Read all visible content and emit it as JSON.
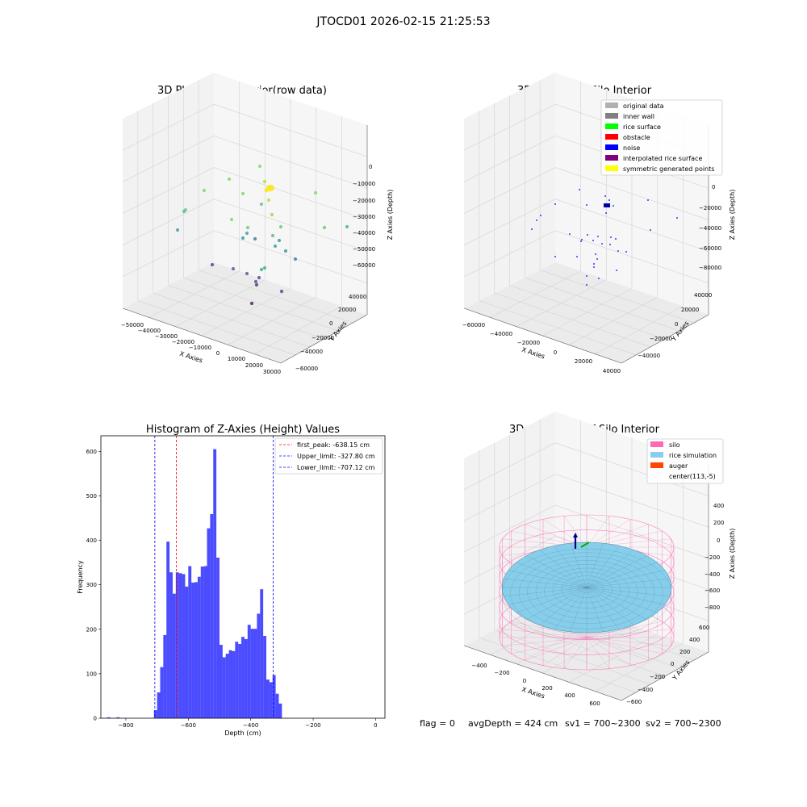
{
  "figure": {
    "suptitle": "JTOCD01 2026-02-15 21:25:53",
    "footer": {
      "flag": "flag = 0",
      "avg_depth": "avgDepth = 424 cm",
      "sv1": "sv1 = 700~2300",
      "sv2": "sv2 = 700~2300"
    }
  },
  "chart_data": [
    {
      "type": "scatter",
      "projection": "3d",
      "title": "3D Plot of Silo Interior(row data)",
      "xlabel": "X Axies",
      "ylabel": "Y Axies",
      "zlabel": "Z Axies (Depth)",
      "x_ticks": [
        "−50000",
        "−40000",
        "−30000",
        "−20000",
        "−10000",
        "0",
        "10000",
        "20000",
        "30000"
      ],
      "y_ticks": [
        "−60000",
        "−40000",
        "−20000",
        "0",
        "20000",
        "40000"
      ],
      "z_ticks": [
        "−60000",
        "−50000",
        "−40000",
        "−30000",
        "−20000",
        "−10000",
        "0"
      ],
      "colormap": "viridis",
      "grid": true
    },
    {
      "type": "scatter",
      "projection": "3d",
      "title": "3D classify of Silo Interior",
      "xlabel": "X Axies",
      "ylabel": "Y Axies",
      "zlabel": "Z Axies (Depth)",
      "x_ticks": [
        "−60000",
        "−40000",
        "−20000",
        "0",
        "20000",
        "40000"
      ],
      "y_ticks": [
        "−40000",
        "−20000",
        "0",
        "20000",
        "40000"
      ],
      "z_ticks": [
        "−80000",
        "−60000",
        "−40000",
        "−20000",
        "0"
      ],
      "legend_position": "top-right",
      "legend": [
        {
          "label": "original data",
          "color": "#b0b0b0"
        },
        {
          "label": "inner wall",
          "color": "#808080"
        },
        {
          "label": "rice surface",
          "color": "#00ff00"
        },
        {
          "label": "obstacle",
          "color": "#ff0000"
        },
        {
          "label": "noise",
          "color": "#0000ff"
        },
        {
          "label": "interpolated rice surface",
          "color": "#800080"
        },
        {
          "label": "symmetric generated points",
          "color": "#ffff00"
        }
      ],
      "grid": true
    },
    {
      "type": "bar",
      "title": "Histogram of Z-Axies (Height) Values",
      "xlabel": "Depth (cm)",
      "ylabel": "Frequency",
      "xlim": [
        -880,
        30
      ],
      "ylim": [
        0,
        635
      ],
      "x_ticks": [
        -800,
        -600,
        -400,
        -200,
        0
      ],
      "y_ticks": [
        0,
        100,
        200,
        300,
        400,
        500,
        600
      ],
      "bar_color": "#0000ff",
      "bin_edges_start": -710,
      "bin_width": 10,
      "values": [
        18,
        58,
        115,
        187,
        397,
        328,
        280,
        328,
        326,
        324,
        296,
        342,
        305,
        306,
        318,
        341,
        342,
        427,
        459,
        605,
        361,
        165,
        137,
        145,
        153,
        151,
        172,
        167,
        183,
        178,
        210,
        201,
        201,
        235,
        290,
        185,
        87,
        81,
        97,
        55,
        33
      ],
      "outliers": [
        {
          "x": -855,
          "value": 2
        },
        {
          "x": -825,
          "value": 2
        }
      ],
      "vlines": [
        {
          "label": "first_peak: -638.15 cm",
          "x": -638.15,
          "color": "#ff0000"
        },
        {
          "label": "Upper_limit: -327.80 cm",
          "x": -327.8,
          "color": "#0000ff"
        },
        {
          "label": "Lower_limit: -707.12 cm",
          "x": -707.12,
          "color": "#0000ff"
        }
      ],
      "legend_position": "top-right",
      "grid": false
    },
    {
      "type": "area",
      "projection": "3d",
      "title": "3D simulation of Silo Interior",
      "xlabel": "X Axies",
      "ylabel": "Y Axies",
      "zlabel": "Z Axies (Depth)",
      "x_ticks": [
        "−400",
        "−200",
        "0",
        "200",
        "400",
        "600"
      ],
      "y_ticks": [
        "−600",
        "−400",
        "−200",
        "0",
        "200",
        "400",
        "600"
      ],
      "z_ticks": [
        "−800",
        "−600",
        "−400",
        "−200",
        "0",
        "200",
        "400"
      ],
      "legend_position": "top-right",
      "legend": [
        {
          "label": "silo",
          "color": "#ff69b4"
        },
        {
          "label": "rice simulation",
          "color": "#87ceeb"
        },
        {
          "label": "auger",
          "color": "#ff4500"
        },
        {
          "label": "center(113,-5)",
          "color": ""
        }
      ],
      "grid": true
    }
  ]
}
